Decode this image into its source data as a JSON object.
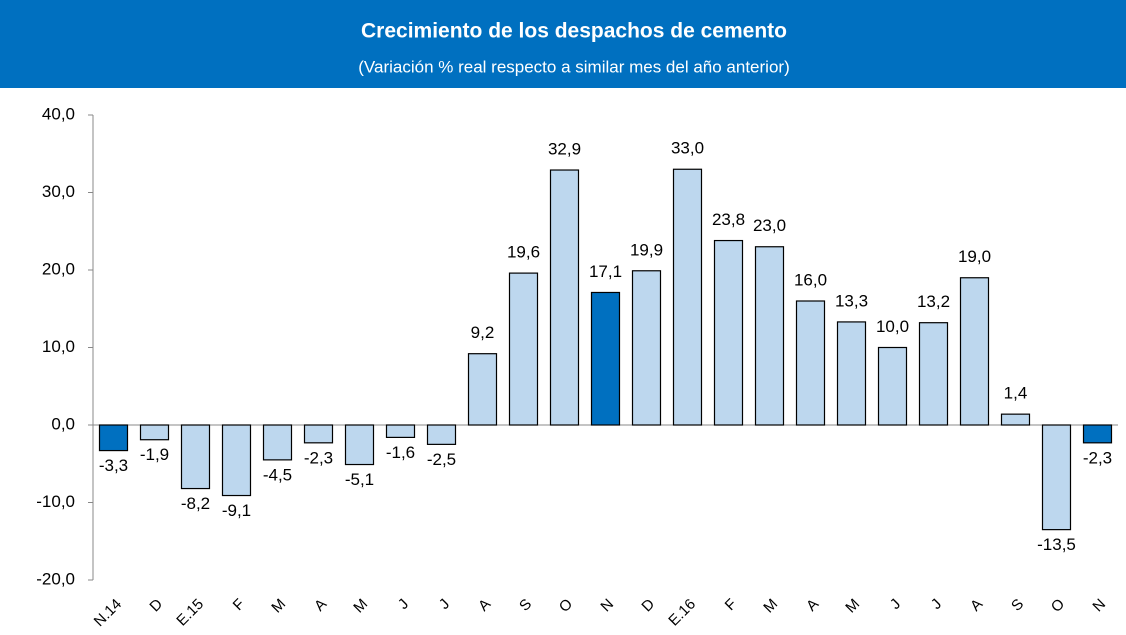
{
  "chart_data": {
    "type": "bar",
    "title": "Crecimiento de los despachos de cemento",
    "subtitle": "(Variación % real respecto a similar mes del año anterior)",
    "categories": [
      "N.14",
      "D",
      "E.15",
      "F",
      "M",
      "A",
      "M",
      "J",
      "J",
      "A",
      "S",
      "O",
      "N",
      "D",
      "E.16",
      "F",
      "M",
      "A",
      "M",
      "J",
      "J",
      "A",
      "S",
      "O",
      "N"
    ],
    "values": [
      -3.3,
      -1.9,
      -8.2,
      -9.1,
      -4.5,
      -2.3,
      -5.1,
      -1.6,
      -2.5,
      9.2,
      19.6,
      32.9,
      17.1,
      19.9,
      33.0,
      23.8,
      23.0,
      16.0,
      13.3,
      10.0,
      13.2,
      19.0,
      1.4,
      -13.5,
      -2.3
    ],
    "value_labels": [
      "-3,3",
      "-1,9",
      "-8,2",
      "-9,1",
      "-4,5",
      "-2,3",
      "-5,1",
      "-1,6",
      "-2,5",
      "9,2",
      "19,6",
      "32,9",
      "17,1",
      "19,9",
      "33,0",
      "23,8",
      "23,0",
      "16,0",
      "13,3",
      "10,0",
      "13,2",
      "19,0",
      "1,4",
      "-13,5",
      "-2,3"
    ],
    "colors": [
      "#0070c0",
      "#bdd7ee",
      "#bdd7ee",
      "#bdd7ee",
      "#bdd7ee",
      "#bdd7ee",
      "#bdd7ee",
      "#bdd7ee",
      "#bdd7ee",
      "#bdd7ee",
      "#bdd7ee",
      "#bdd7ee",
      "#0070c0",
      "#bdd7ee",
      "#bdd7ee",
      "#bdd7ee",
      "#bdd7ee",
      "#bdd7ee",
      "#bdd7ee",
      "#bdd7ee",
      "#bdd7ee",
      "#bdd7ee",
      "#bdd7ee",
      "#bdd7ee",
      "#0070c0"
    ],
    "ylim": [
      -20,
      40
    ],
    "yticks": [
      {
        "value": -20,
        "label": "-20,0"
      },
      {
        "value": -10,
        "label": "-10,0"
      },
      {
        "value": 0,
        "label": "0,0"
      },
      {
        "value": 10,
        "label": "10,0"
      },
      {
        "value": 20,
        "label": "20,0"
      },
      {
        "value": 30,
        "label": "30,0"
      },
      {
        "value": 40,
        "label": "40,0"
      }
    ]
  }
}
